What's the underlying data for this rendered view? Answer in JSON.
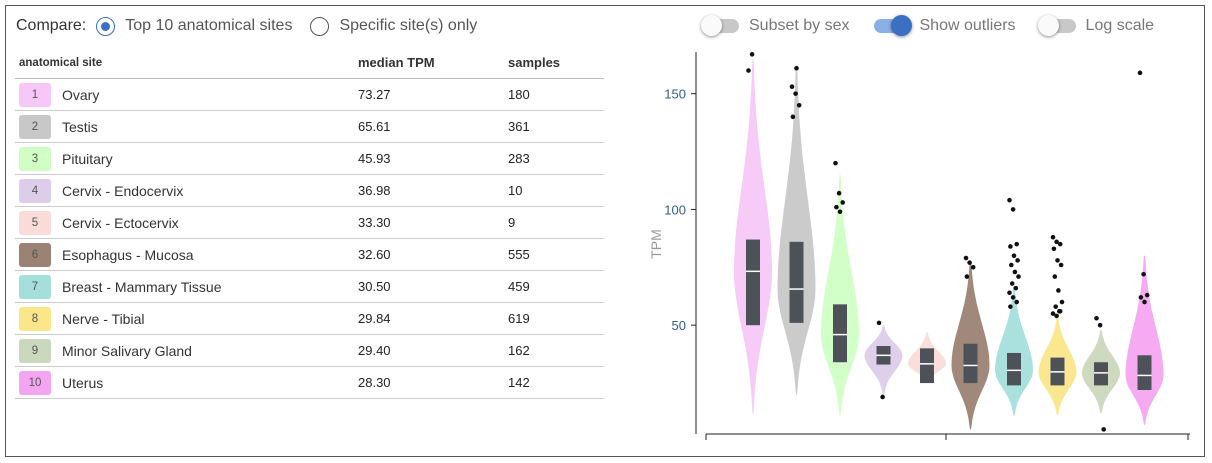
{
  "compare": {
    "label": "Compare:",
    "options": [
      {
        "label": "Top 10 anatomical sites",
        "selected": true
      },
      {
        "label": "Specific site(s) only",
        "selected": false
      }
    ]
  },
  "toggles": [
    {
      "label": "Subset by sex",
      "on": false
    },
    {
      "label": "Show outliers",
      "on": true
    },
    {
      "label": "Log scale",
      "on": false
    }
  ],
  "table": {
    "headers": [
      "anatomical site",
      "median TPM",
      "samples"
    ],
    "rows": [
      {
        "rank": "1",
        "site": "Ovary",
        "median": "73.27",
        "samples": "180",
        "color": "#f7c8f7"
      },
      {
        "rank": "2",
        "site": "Testis",
        "median": "65.61",
        "samples": "361",
        "color": "#c8c8c8"
      },
      {
        "rank": "3",
        "site": "Pituitary",
        "median": "45.93",
        "samples": "283",
        "color": "#cfffc4"
      },
      {
        "rank": "4",
        "site": "Cervix - Endocervix",
        "median": "36.98",
        "samples": "10",
        "color": "#dccdea"
      },
      {
        "rank": "5",
        "site": "Cervix - Ectocervix",
        "median": "33.30",
        "samples": "9",
        "color": "#f9dcd8"
      },
      {
        "rank": "6",
        "site": "Esophagus - Mucosa",
        "median": "32.60",
        "samples": "555",
        "color": "#9b8373"
      },
      {
        "rank": "7",
        "site": "Breast - Mammary Tissue",
        "median": "30.50",
        "samples": "459",
        "color": "#a5dfdc"
      },
      {
        "rank": "8",
        "site": "Nerve - Tibial",
        "median": "29.84",
        "samples": "619",
        "color": "#fbe68a"
      },
      {
        "rank": "9",
        "site": "Minor Salivary Gland",
        "median": "29.40",
        "samples": "162",
        "color": "#cad8bd"
      },
      {
        "rank": "10",
        "site": "Uterus",
        "median": "28.30",
        "samples": "142",
        "color": "#f4a5f1"
      }
    ]
  },
  "chart_data": {
    "type": "violin",
    "ylabel": "TPM",
    "yticks": [
      50,
      100,
      150
    ],
    "ylim": [
      3,
      168
    ],
    "series": [
      {
        "median": 73.27,
        "q1": 50,
        "q3": 87,
        "min": 12,
        "max": 165,
        "color": "#f7c8f7",
        "outliers": [
          160,
          167
        ]
      },
      {
        "median": 65.61,
        "q1": 51,
        "q3": 86,
        "min": 20,
        "max": 162,
        "color": "#c8c8c8",
        "outliers": [
          153,
          150,
          145,
          140,
          161
        ]
      },
      {
        "median": 45.93,
        "q1": 34,
        "q3": 59,
        "min": 11,
        "max": 115,
        "color": "#cfffc4",
        "outliers": [
          120,
          107,
          103,
          101,
          99
        ]
      },
      {
        "median": 36.98,
        "q1": 33,
        "q3": 41,
        "min": 20,
        "max": 50,
        "color": "#dccdea",
        "outliers": [
          51,
          19
        ]
      },
      {
        "median": 33.3,
        "q1": 25,
        "q3": 40,
        "min": 25,
        "max": 47,
        "color": "#f9dcd8",
        "outliers": []
      },
      {
        "median": 32.6,
        "q1": 25,
        "q3": 42,
        "min": 5,
        "max": 78,
        "color": "#9b8373",
        "outliers": [
          79,
          77,
          75,
          71
        ]
      },
      {
        "median": 30.5,
        "q1": 24,
        "q3": 38,
        "min": 11,
        "max": 67,
        "color": "#a5dfdc",
        "outliers": [
          104,
          100,
          85,
          84,
          80,
          78,
          76,
          73,
          71,
          68,
          66,
          64,
          62,
          60,
          58
        ]
      },
      {
        "median": 29.84,
        "q1": 24,
        "q3": 36,
        "min": 11,
        "max": 54,
        "color": "#fbe68a",
        "outliers": [
          88,
          86,
          85,
          83,
          78,
          76,
          71,
          65,
          60,
          58,
          56,
          55,
          54,
          56
        ]
      },
      {
        "median": 29.4,
        "q1": 24,
        "q3": 34,
        "min": 12,
        "max": 48,
        "color": "#cad8bd",
        "outliers": [
          53,
          50,
          5
        ]
      },
      {
        "median": 28.3,
        "q1": 22,
        "q3": 37,
        "min": 7,
        "max": 80,
        "color": "#f4a5f1",
        "outliers": [
          159,
          72,
          63,
          62,
          60
        ]
      }
    ]
  }
}
